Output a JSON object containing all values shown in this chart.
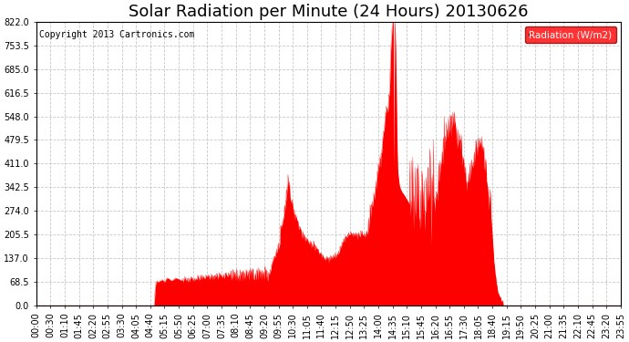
{
  "title": "Solar Radiation per Minute (24 Hours) 20130626",
  "copyright": "Copyright 2013 Cartronics.com",
  "legend_label": "Radiation (W/m2)",
  "plot_bg_color": "#ffffff",
  "line_color": "#ff0000",
  "fill_color": "#ff0000",
  "grid_color": "#c8c8c8",
  "ylim": [
    0.0,
    822.0
  ],
  "yticks": [
    0.0,
    68.5,
    137.0,
    205.5,
    274.0,
    342.5,
    411.0,
    479.5,
    548.0,
    616.5,
    685.0,
    753.5,
    822.0
  ],
  "xtick_labels": [
    "00:00",
    "00:30",
    "01:10",
    "01:45",
    "02:20",
    "02:55",
    "03:30",
    "04:05",
    "04:40",
    "05:15",
    "05:50",
    "06:25",
    "07:00",
    "07:35",
    "08:10",
    "08:45",
    "09:20",
    "09:55",
    "10:30",
    "11:05",
    "11:40",
    "12:15",
    "12:50",
    "13:25",
    "14:00",
    "14:35",
    "15:10",
    "15:45",
    "16:20",
    "16:55",
    "17:30",
    "18:05",
    "18:40",
    "19:15",
    "19:50",
    "20:25",
    "21:00",
    "21:35",
    "22:10",
    "22:45",
    "23:20",
    "23:55"
  ],
  "title_fontsize": 13,
  "axis_fontsize": 7,
  "copyright_fontsize": 7
}
